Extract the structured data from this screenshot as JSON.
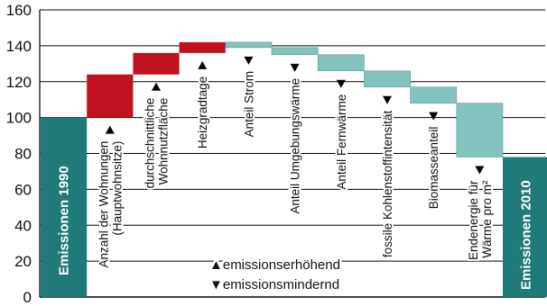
{
  "chart_data": {
    "type": "bar",
    "subtype": "waterfall",
    "ylim": [
      0,
      160
    ],
    "yticks": [
      0,
      20,
      40,
      60,
      80,
      100,
      120,
      140,
      160
    ],
    "grid": true,
    "colors": {
      "start_end": "#1f7a78",
      "increase": "#c0111f",
      "decrease": "#84c3bd",
      "grid": "#000000"
    },
    "start": {
      "label": "Emissionen 1990",
      "value": 100
    },
    "end": {
      "label": "Emissionen 2010",
      "value": 78
    },
    "steps": [
      {
        "label": [
          "Anzahl der Wohnungen",
          "(Hauptwohnsitze)"
        ],
        "from": 100,
        "to": 124,
        "direction": "up"
      },
      {
        "label": [
          "durchschnittliche",
          "Wohnnutzfläche"
        ],
        "from": 124,
        "to": 136,
        "direction": "up"
      },
      {
        "label": [
          "Heizgradtage"
        ],
        "from": 136,
        "to": 142,
        "direction": "up"
      },
      {
        "label": [
          "Anteil Strom"
        ],
        "from": 142,
        "to": 139,
        "direction": "down"
      },
      {
        "label": [
          "Anteil Umgebungswärme"
        ],
        "from": 139,
        "to": 135,
        "direction": "down"
      },
      {
        "label": [
          "Anteil Fernwärme"
        ],
        "from": 135,
        "to": 126,
        "direction": "down"
      },
      {
        "label": [
          "fossile Kohlenstoffintensität"
        ],
        "from": 126,
        "to": 117,
        "direction": "down"
      },
      {
        "label": [
          "Biomasseanteil"
        ],
        "from": 117,
        "to": 108,
        "direction": "down"
      },
      {
        "label": [
          "Endenergie für",
          "Wärme pro m²"
        ],
        "from": 108,
        "to": 78,
        "direction": "down"
      }
    ],
    "legend": {
      "position": "bottom-center",
      "items": [
        {
          "symbol": "▲",
          "text": "emissionserhöhend"
        },
        {
          "symbol": "▼",
          "text": "emissionsmindernd"
        }
      ]
    }
  }
}
